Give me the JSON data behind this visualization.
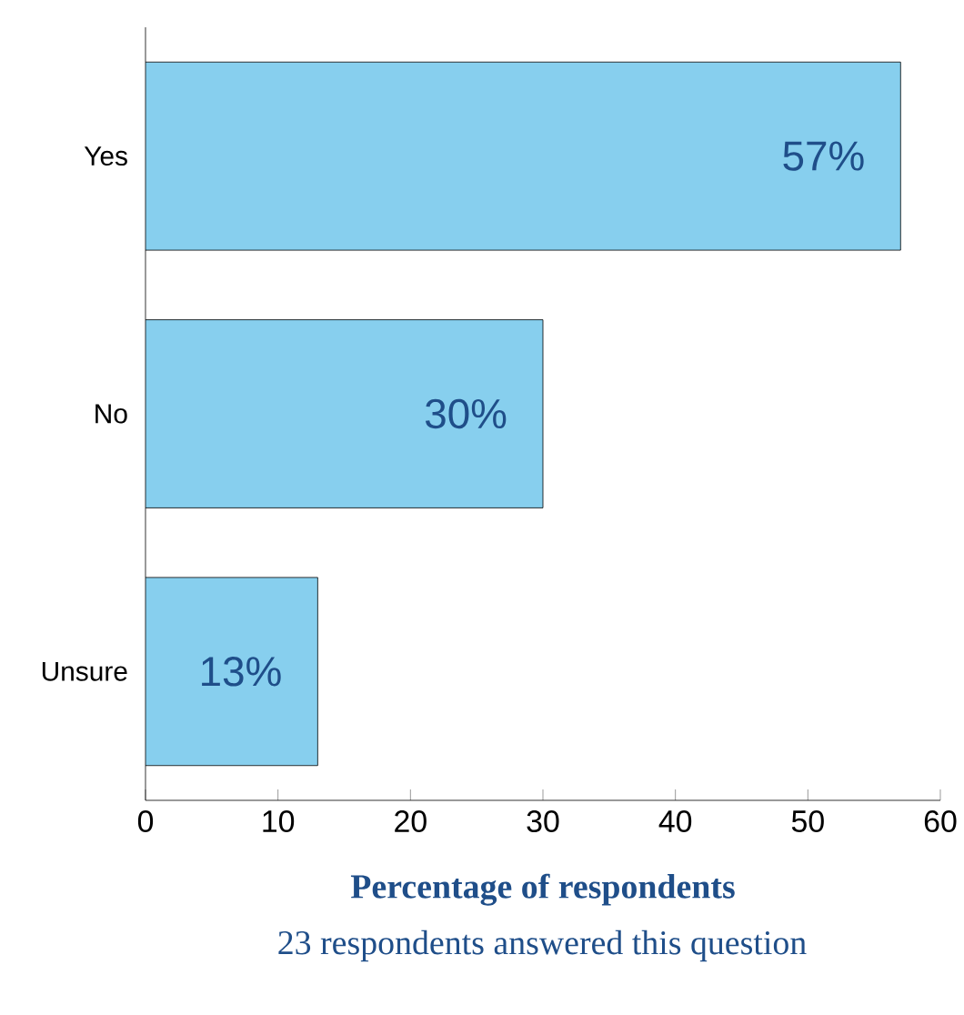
{
  "chart_data": {
    "type": "bar",
    "orientation": "horizontal",
    "categories": [
      "Yes",
      "No",
      "Unsure"
    ],
    "values": [
      57,
      30,
      13
    ],
    "value_labels": [
      "57%",
      "30%",
      "13%"
    ],
    "color": "#87cfee",
    "xlim": [
      0,
      60
    ],
    "xticks": [
      0,
      10,
      20,
      30,
      40,
      50,
      60
    ],
    "xlabel": "Percentage of respondents",
    "annotations": [
      "23 respondents answered this question"
    ]
  }
}
